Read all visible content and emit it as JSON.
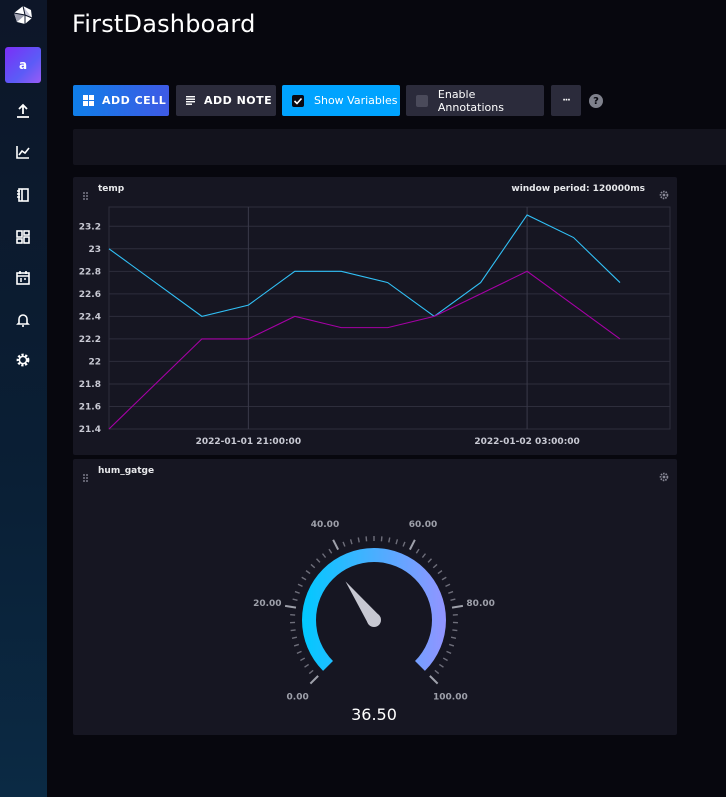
{
  "dashboard": {
    "title": "FirstDashboard"
  },
  "sidebar": {
    "avatar_letter": "a",
    "icons": [
      "influx-logo-icon",
      "upload-icon",
      "graph-icon",
      "notebook-icon",
      "dashboards-icon",
      "tasks-calendar-icon",
      "bell-icon",
      "gear-icon"
    ]
  },
  "toolbar": {
    "add_cell_label": "ADD CELL",
    "add_note_label": "ADD NOTE",
    "show_variables_label": "Show Variables",
    "show_variables_checked": true,
    "enable_annotations_label": "Enable Annotations",
    "enable_annotations_checked": false,
    "more_label": "···",
    "help_label": "?"
  },
  "colors": {
    "accent_blue": "#00a3ff",
    "series_temp_1": "#31c0f6",
    "series_temp_2": "#a500a5",
    "gauge_start": "#00c9ff",
    "gauge_end": "#9394ff"
  },
  "cells": {
    "temp": {
      "title": "temp",
      "window_period_label": "window period: 120000ms",
      "chart_data": {
        "type": "line",
        "title": "temp",
        "x": [
          "2022-01-01 18:00:00",
          "2022-01-01 20:00:00",
          "2022-01-01 21:00:00",
          "2022-01-01 22:00:00",
          "2022-01-01 23:00:00",
          "2022-01-02 00:00:00",
          "2022-01-02 01:00:00",
          "2022-01-02 02:00:00",
          "2022-01-02 03:00:00",
          "2022-01-02 04:00:00",
          "2022-01-02 05:00:00"
        ],
        "series": [
          {
            "values": [
              23.0,
              22.4,
              22.5,
              22.8,
              22.8,
              22.7,
              22.4,
              22.7,
              23.3,
              23.1,
              22.7
            ]
          },
          {
            "values": [
              21.4,
              22.2,
              22.2,
              22.4,
              22.3,
              22.3,
              22.4,
              22.6,
              22.8,
              22.5,
              22.2
            ]
          }
        ],
        "ylim": [
          21.4,
          23.3
        ],
        "yticks": [
          "23.2",
          "23",
          "22.8",
          "22.6",
          "22.4",
          "22.2",
          "22",
          "21.8",
          "21.6",
          "21.4"
        ],
        "xticks": [
          "2022-01-01 21:00:00",
          "2022-01-02 03:00:00"
        ],
        "grid": true
      }
    },
    "gauge": {
      "title": "hum_gatge",
      "chart_data": {
        "type": "gauge",
        "value": 36.5,
        "value_label": "36.50",
        "min": 0,
        "max": 100,
        "tick_labels": [
          "0.00",
          "20.00",
          "40.00",
          "60.00",
          "80.00",
          "100.00"
        ]
      }
    }
  }
}
